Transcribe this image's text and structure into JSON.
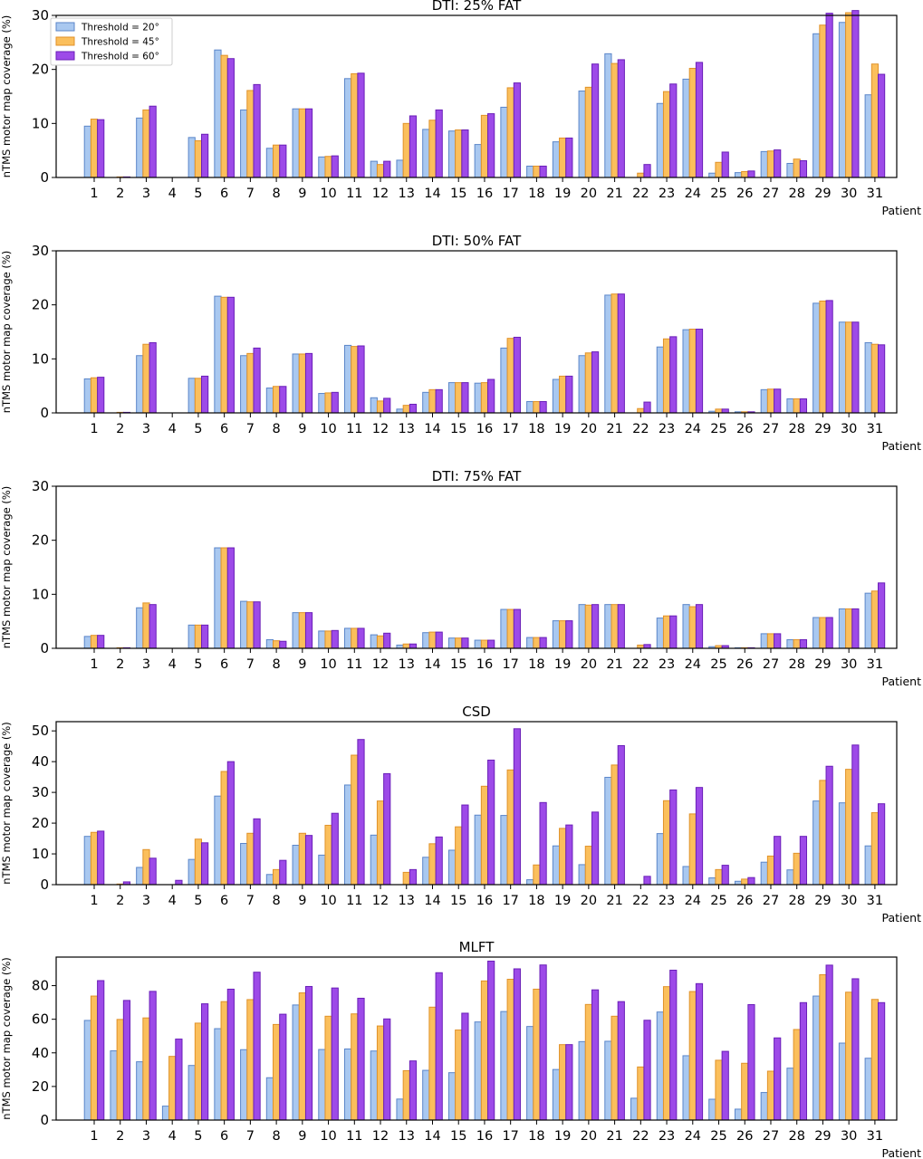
{
  "legend": {
    "placement": "top-left",
    "entries": [
      "Threshold = 20°",
      "Threshold = 45°",
      "Threshold = 60°"
    ]
  },
  "colors": {
    "series_fill": [
      "#a9c8f0",
      "#fbbf5c",
      "#9d4ae8"
    ],
    "series_stroke": [
      "#5b86c9",
      "#e0922a",
      "#6a1fb8"
    ]
  },
  "chart_data": [
    {
      "type": "bar",
      "title": "DTI: 25% FAT",
      "xlabel": "Patient",
      "ylabel": "nTMS motor map coverage (%)",
      "ylim": [
        0,
        30
      ],
      "yticks": [
        0,
        10,
        20,
        30
      ],
      "grid": false,
      "categories": [
        "1",
        "2",
        "3",
        "4",
        "5",
        "6",
        "7",
        "8",
        "9",
        "10",
        "11",
        "12",
        "13",
        "14",
        "15",
        "16",
        "17",
        "18",
        "19",
        "20",
        "21",
        "22",
        "23",
        "24",
        "25",
        "26",
        "27",
        "28",
        "29",
        "30",
        "31"
      ],
      "series": [
        {
          "name": "Threshold = 20°",
          "values": [
            9.5,
            0,
            11,
            0,
            7.4,
            23.6,
            12.5,
            5.4,
            12.7,
            3.8,
            18.3,
            3.0,
            3.2,
            8.9,
            8.6,
            6.1,
            13.0,
            2.1,
            6.6,
            16.0,
            22.9,
            0,
            13.7,
            18.2,
            0.8,
            0.9,
            4.8,
            2.6,
            26.6,
            28.7,
            15.3
          ]
        },
        {
          "name": "Threshold = 45°",
          "values": [
            10.8,
            0.1,
            12.5,
            0,
            6.8,
            22.6,
            16.1,
            6.0,
            12.7,
            3.9,
            19.2,
            2.4,
            10.0,
            10.6,
            8.8,
            11.5,
            16.6,
            2.1,
            7.3,
            16.7,
            21.1,
            0.8,
            15.9,
            20.2,
            2.8,
            1.1,
            4.9,
            3.4,
            28.2,
            30.5,
            21.0
          ]
        },
        {
          "name": "Threshold = 60°",
          "values": [
            10.7,
            0.1,
            13.2,
            0,
            8.0,
            22.0,
            17.2,
            6.0,
            12.7,
            4.0,
            19.3,
            3.0,
            11.4,
            12.5,
            8.8,
            11.8,
            17.5,
            2.1,
            7.3,
            21.0,
            21.8,
            2.4,
            17.3,
            21.3,
            4.7,
            1.2,
            5.1,
            3.1,
            30.4,
            30.9,
            19.1
          ]
        }
      ]
    },
    {
      "type": "bar",
      "title": "DTI: 50% FAT",
      "xlabel": "Patient",
      "ylabel": "nTMS motor map coverage (%)",
      "ylim": [
        0,
        30
      ],
      "yticks": [
        0,
        10,
        20,
        30
      ],
      "grid": false,
      "categories": [
        "1",
        "2",
        "3",
        "4",
        "5",
        "6",
        "7",
        "8",
        "9",
        "10",
        "11",
        "12",
        "13",
        "14",
        "15",
        "16",
        "17",
        "18",
        "19",
        "20",
        "21",
        "22",
        "23",
        "24",
        "25",
        "26",
        "27",
        "28",
        "29",
        "30",
        "31"
      ],
      "series": [
        {
          "name": "Threshold = 20°",
          "values": [
            6.3,
            0,
            10.6,
            0,
            6.4,
            21.6,
            10.6,
            4.6,
            10.9,
            3.6,
            12.5,
            2.8,
            0.7,
            3.8,
            5.6,
            5.5,
            12.0,
            2.1,
            6.2,
            10.6,
            21.8,
            0,
            12.2,
            15.4,
            0.3,
            0.2,
            4.3,
            2.6,
            20.3,
            16.8,
            13.0
          ]
        },
        {
          "name": "Threshold = 45°",
          "values": [
            6.5,
            0.1,
            12.7,
            0,
            6.4,
            21.4,
            11.0,
            4.9,
            10.9,
            3.7,
            12.3,
            2.2,
            1.4,
            4.3,
            5.6,
            5.6,
            13.8,
            2.1,
            6.8,
            11.1,
            22.0,
            0.8,
            13.7,
            15.5,
            0.7,
            0.2,
            4.4,
            2.6,
            20.7,
            16.8,
            12.7
          ]
        },
        {
          "name": "Threshold = 60°",
          "values": [
            6.6,
            0.1,
            13.0,
            0,
            6.8,
            21.4,
            12.0,
            4.9,
            11.0,
            3.8,
            12.4,
            2.7,
            1.6,
            4.3,
            5.6,
            6.2,
            14.0,
            2.1,
            6.8,
            11.3,
            22.0,
            2.0,
            14.1,
            15.5,
            0.7,
            0.2,
            4.4,
            2.6,
            20.8,
            16.8,
            12.6
          ]
        }
      ]
    },
    {
      "type": "bar",
      "title": "DTI: 75% FAT",
      "xlabel": "Patient",
      "ylabel": "nTMS motor map coverage (%)",
      "ylim": [
        0,
        30
      ],
      "yticks": [
        0,
        10,
        20,
        30
      ],
      "grid": false,
      "categories": [
        "1",
        "2",
        "3",
        "4",
        "5",
        "6",
        "7",
        "8",
        "9",
        "10",
        "11",
        "12",
        "13",
        "14",
        "15",
        "16",
        "17",
        "18",
        "19",
        "20",
        "21",
        "22",
        "23",
        "24",
        "25",
        "26",
        "27",
        "28",
        "29",
        "30",
        "31"
      ],
      "series": [
        {
          "name": "Threshold = 20°",
          "values": [
            2.2,
            0,
            7.5,
            0,
            4.3,
            18.6,
            8.7,
            1.6,
            6.6,
            3.2,
            3.7,
            2.5,
            0.6,
            2.9,
            1.9,
            1.5,
            7.2,
            2.0,
            5.1,
            8.1,
            8.1,
            0,
            5.6,
            8.1,
            0.3,
            0.1,
            2.7,
            1.6,
            5.7,
            7.3,
            10.2
          ]
        },
        {
          "name": "Threshold = 45°",
          "values": [
            2.4,
            0.1,
            8.4,
            0,
            4.3,
            18.6,
            8.6,
            1.4,
            6.6,
            3.2,
            3.7,
            2.3,
            0.8,
            3.0,
            1.9,
            1.5,
            7.2,
            2.0,
            5.1,
            8.0,
            8.1,
            0.6,
            6.0,
            7.7,
            0.5,
            0.1,
            2.7,
            1.6,
            5.7,
            7.3,
            10.6
          ]
        },
        {
          "name": "Threshold = 60°",
          "values": [
            2.4,
            0.1,
            8.1,
            0,
            4.3,
            18.6,
            8.6,
            1.3,
            6.6,
            3.3,
            3.7,
            2.8,
            0.8,
            3.0,
            1.9,
            1.5,
            7.2,
            2.0,
            5.1,
            8.1,
            8.1,
            0.7,
            6.0,
            8.1,
            0.5,
            0.1,
            2.7,
            1.6,
            5.7,
            7.3,
            12.1
          ]
        }
      ]
    },
    {
      "type": "bar",
      "title": "CSD",
      "xlabel": "Patient",
      "ylabel": "nTMS motor map coverage (%)",
      "ylim": [
        0,
        53
      ],
      "yticks": [
        0,
        10,
        20,
        30,
        40,
        50
      ],
      "grid": false,
      "categories": [
        "1",
        "2",
        "3",
        "4",
        "5",
        "6",
        "7",
        "8",
        "9",
        "10",
        "11",
        "12",
        "13",
        "14",
        "15",
        "16",
        "17",
        "18",
        "19",
        "20",
        "21",
        "22",
        "23",
        "24",
        "25",
        "26",
        "27",
        "28",
        "29",
        "30",
        "31"
      ],
      "series": [
        {
          "name": "Threshold = 20°",
          "values": [
            15.7,
            0,
            5.6,
            0,
            8.2,
            28.8,
            13.4,
            3.3,
            12.8,
            9.6,
            32.4,
            16.1,
            0,
            8.9,
            11.2,
            22.6,
            22.5,
            1.6,
            12.6,
            6.5,
            34.9,
            0,
            16.6,
            5.9,
            2.2,
            1.1,
            7.3,
            4.8,
            27.2,
            26.6,
            12.6
          ]
        },
        {
          "name": "Threshold = 45°",
          "values": [
            17.0,
            0.2,
            11.4,
            0,
            14.8,
            36.8,
            16.7,
            4.9,
            16.7,
            19.3,
            42.1,
            27.2,
            4.0,
            13.3,
            18.8,
            32.0,
            37.3,
            6.4,
            18.3,
            12.5,
            38.9,
            0,
            27.3,
            23.0,
            4.9,
            1.8,
            9.3,
            10.2,
            33.9,
            37.5,
            23.4
          ]
        },
        {
          "name": "Threshold = 60°",
          "values": [
            17.4,
            0.9,
            8.6,
            1.4,
            13.6,
            40.0,
            21.4,
            7.9,
            16.0,
            23.2,
            47.2,
            36.1,
            4.9,
            15.5,
            25.9,
            40.5,
            50.7,
            26.7,
            19.4,
            23.6,
            45.2,
            2.7,
            30.8,
            31.6,
            6.3,
            2.3,
            15.7,
            15.7,
            38.5,
            45.4,
            26.3
          ]
        }
      ]
    },
    {
      "type": "bar",
      "title": "MLFT",
      "xlabel": "Patient",
      "ylabel": "nTMS motor map coverage (%)",
      "ylim": [
        0,
        97
      ],
      "yticks": [
        0,
        20,
        40,
        60,
        80
      ],
      "grid": false,
      "categories": [
        "1",
        "2",
        "3",
        "4",
        "5",
        "6",
        "7",
        "8",
        "9",
        "10",
        "11",
        "12",
        "13",
        "14",
        "15",
        "16",
        "17",
        "18",
        "19",
        "20",
        "21",
        "22",
        "23",
        "24",
        "25",
        "26",
        "27",
        "28",
        "29",
        "30",
        "31"
      ],
      "series": [
        {
          "name": "Threshold = 20°",
          "values": [
            59.3,
            41.2,
            34.7,
            8.3,
            32.5,
            54.4,
            41.9,
            25.2,
            68.5,
            42.0,
            42.3,
            41.1,
            12.5,
            29.6,
            28.2,
            58.4,
            64.6,
            55.7,
            30.1,
            46.7,
            46.9,
            13.0,
            64.3,
            38.3,
            12.4,
            6.5,
            16.4,
            30.9,
            73.8,
            45.8,
            36.8
          ]
        },
        {
          "name": "Threshold = 45°",
          "values": [
            73.8,
            59.9,
            60.8,
            37.9,
            57.7,
            70.5,
            71.7,
            56.9,
            75.7,
            61.8,
            63.2,
            56.0,
            29.4,
            67.2,
            53.6,
            82.8,
            83.8,
            77.9,
            44.9,
            68.8,
            61.8,
            31.6,
            79.4,
            76.5,
            35.6,
            33.8,
            29.1,
            53.9,
            86.5,
            76.1,
            71.8
          ]
        },
        {
          "name": "Threshold = 60°",
          "values": [
            83.0,
            71.2,
            76.6,
            48.2,
            69.2,
            77.9,
            88.0,
            63.0,
            79.5,
            78.6,
            72.5,
            60.2,
            35.2,
            87.7,
            63.6,
            94.6,
            90.0,
            92.3,
            44.9,
            77.5,
            70.5,
            59.4,
            89.2,
            81.2,
            40.9,
            68.7,
            48.9,
            69.9,
            92.2,
            84.1,
            69.9
          ]
        }
      ]
    }
  ]
}
